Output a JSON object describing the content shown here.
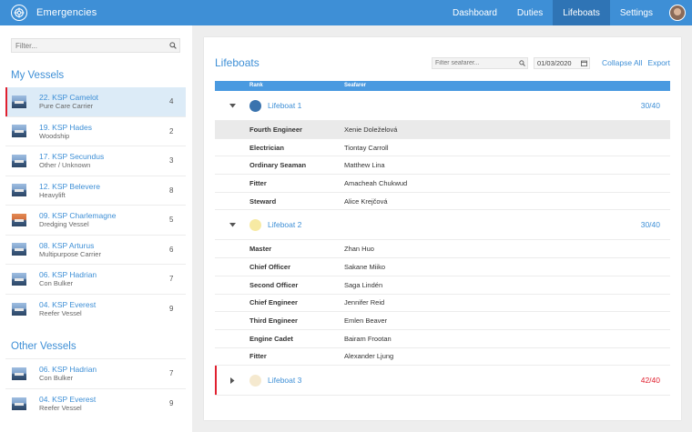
{
  "app": {
    "title": "Emergencies"
  },
  "nav": {
    "items": [
      "Dashboard",
      "Duties",
      "Lifeboats",
      "Settings"
    ],
    "active": "Lifeboats"
  },
  "sidebar": {
    "filter_placeholder": "Filter...",
    "my_vessels_title": "My Vessels",
    "other_vessels_title": "Other Vessels",
    "my_vessels": [
      {
        "name": "22. KSP Camelot",
        "type": "Pure Care Carrier",
        "count": "4",
        "active": true
      },
      {
        "name": "19. KSP Hades",
        "type": "Woodship",
        "count": "2"
      },
      {
        "name": "17. KSP Secundus",
        "type": "Other / Unknown",
        "count": "3"
      },
      {
        "name": "12. KSP Belevere",
        "type": "Heavylift",
        "count": "8"
      },
      {
        "name": "09. KSP Charlemagne",
        "type": "Dredging Vessel",
        "count": "5"
      },
      {
        "name": "08. KSP Arturus",
        "type": "Multipurpose Carrier",
        "count": "6"
      },
      {
        "name": "06. KSP Hadrian",
        "type": "Con Bulker",
        "count": "7"
      },
      {
        "name": "04. KSP Everest",
        "type": "Reefer Vessel",
        "count": "9"
      }
    ],
    "other_vessels": [
      {
        "name": "06. KSP Hadrian",
        "type": "Con Bulker",
        "count": "7"
      },
      {
        "name": "04. KSP Everest",
        "type": "Reefer Vessel",
        "count": "9"
      }
    ]
  },
  "main": {
    "title": "Lifeboats",
    "seafarer_filter_placeholder": "Filter seafarer...",
    "date": "01/03/2020",
    "collapse_all": "Collapse All",
    "export": "Export",
    "columns": {
      "rank": "Rank",
      "seafarer": "Seafarer"
    },
    "lifeboats": [
      {
        "name": "Lifeboat 1",
        "count": "30/40",
        "color": "#3a73ae",
        "expanded": true,
        "crew": [
          {
            "rank": "Fourth Engineer",
            "name": "Xenie Doleželová"
          },
          {
            "rank": "Electrician",
            "name": "Tiontay Carroll"
          },
          {
            "rank": "Ordinary Seaman",
            "name": "Matthew Lina"
          },
          {
            "rank": "Fitter",
            "name": "Amacheah Chukwud"
          },
          {
            "rank": "Steward",
            "name": "Alice Krejčová"
          }
        ]
      },
      {
        "name": "Lifeboat 2",
        "count": "30/40",
        "color": "#f7eaa3",
        "expanded": true,
        "crew": [
          {
            "rank": "Master",
            "name": "Zhan Huo"
          },
          {
            "rank": "Chief Officer",
            "name": "Sakane Miiko"
          },
          {
            "rank": "Second Officer",
            "name": "Saga Lindén"
          },
          {
            "rank": "Chief Engineer",
            "name": "Jennifer Reid"
          },
          {
            "rank": "Third Engineer",
            "name": "Emlen Beaver"
          },
          {
            "rank": "Engine Cadet",
            "name": "Bairam Frootan"
          },
          {
            "rank": "Fitter",
            "name": "Alexander Ljung"
          }
        ]
      },
      {
        "name": "Lifeboat 3",
        "count": "42/40",
        "color": "#f5e9cf",
        "expanded": false,
        "alert": true,
        "crew": []
      }
    ]
  },
  "colors": {
    "accent": "#3e8fd6",
    "alert": "#e0202f"
  }
}
